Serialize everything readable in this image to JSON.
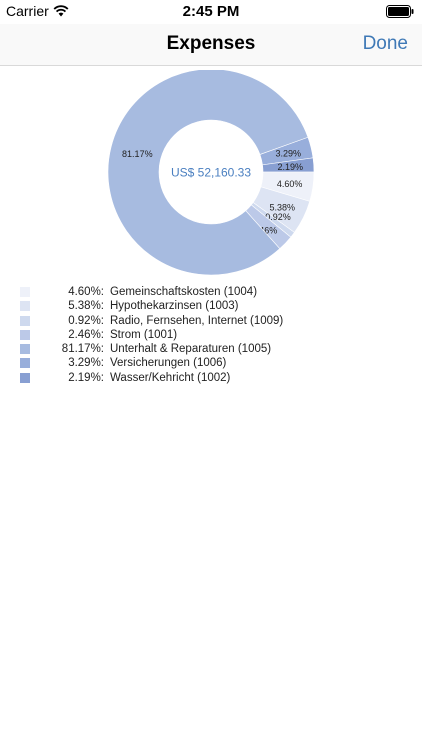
{
  "status_bar": {
    "carrier": "Carrier",
    "time": "2:45 PM"
  },
  "nav": {
    "title": "Expenses",
    "done_label": "Done"
  },
  "chart_data": {
    "type": "pie",
    "center_label": "US$ 52,160.33",
    "slices": [
      {
        "label": "Gemeinschaftskosten (1004)",
        "pct_label": "4.60%",
        "value": 4.6,
        "color": "#eef1f9"
      },
      {
        "label": "Hypothekarzinsen (1003)",
        "pct_label": "5.38%",
        "value": 5.38,
        "color": "#dde4f3"
      },
      {
        "label": "Radio, Fernsehen, Internet (1009)",
        "pct_label": "0.92%",
        "value": 0.92,
        "color": "#ced9ee"
      },
      {
        "label": "Strom (1001)",
        "pct_label": "2.46%",
        "value": 2.46,
        "color": "#bcc9e8"
      },
      {
        "label": "Unterhalt & Reparaturen (1005)",
        "pct_label": "81.17%",
        "value": 81.17,
        "color": "#a7bbe0"
      },
      {
        "label": "Versicherungen (1006)",
        "pct_label": "3.29%",
        "value": 3.29,
        "color": "#98aedb"
      },
      {
        "label": "Wasser/Kehricht (1002)",
        "pct_label": "2.19%",
        "value": 2.19,
        "color": "#889fd2"
      }
    ]
  }
}
